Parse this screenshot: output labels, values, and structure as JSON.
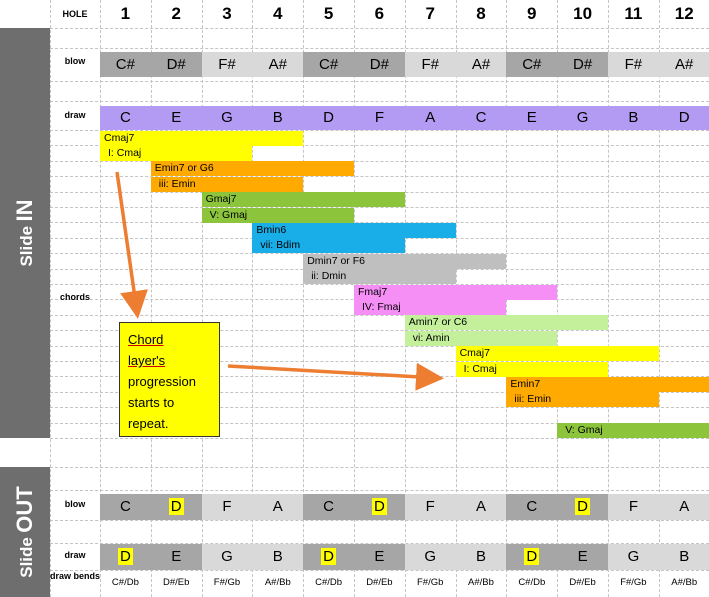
{
  "header": {
    "hole_label": "HOLE",
    "holes": [
      "1",
      "2",
      "3",
      "4",
      "5",
      "6",
      "7",
      "8",
      "9",
      "10",
      "11",
      "12"
    ]
  },
  "side_in": {
    "label_small": "Slide",
    "label_big": "IN"
  },
  "side_out": {
    "label_small": "Slide",
    "label_big": "OUT"
  },
  "rows": {
    "blow": "blow",
    "draw": "draw",
    "chords": "chords",
    "out_blow": "blow",
    "out_draw": "draw",
    "draw_bends": "draw bends"
  },
  "in_blow": [
    "C#",
    "D#",
    "F#",
    "A#",
    "C#",
    "D#",
    "F#",
    "A#",
    "C#",
    "D#",
    "F#",
    "A#"
  ],
  "in_draw": [
    "C",
    "E",
    "G",
    "B",
    "D",
    "F",
    "A",
    "C",
    "E",
    "G",
    "B",
    "D"
  ],
  "out_blow": [
    "C",
    "D",
    "F",
    "A",
    "C",
    "D",
    "F",
    "A",
    "C",
    "D",
    "F",
    "A"
  ],
  "out_blow_highlight": [
    false,
    true,
    false,
    false,
    false,
    true,
    false,
    false,
    false,
    true,
    false,
    false
  ],
  "out_draw": [
    "D",
    "E",
    "G",
    "B",
    "D",
    "E",
    "G",
    "B",
    "D",
    "E",
    "G",
    "B"
  ],
  "out_draw_highlight": [
    true,
    false,
    false,
    false,
    true,
    false,
    false,
    false,
    true,
    false,
    false,
    false
  ],
  "draw_bends": [
    "C#/Db",
    "D#/Eb",
    "F#/Gb",
    "A#/Bb",
    "C#/Db",
    "D#/Eb",
    "F#/Gb",
    "A#/Bb",
    "C#/Db",
    "D#/Eb",
    "F#/Gb",
    "A#/Bb"
  ],
  "chords": [
    {
      "name": "Cmaj7",
      "roman": "I:  Cmaj",
      "color": "#ffff00"
    },
    {
      "name": "Emin7 or G6",
      "roman": "iii:  Emin",
      "color": "#ffaa00"
    },
    {
      "name": "Gmaj7",
      "roman": "V:  Gmaj",
      "color": "#8cc43c"
    },
    {
      "name": "Bmin6",
      "roman": "vii:  Bdim",
      "color": "#1aaee8"
    },
    {
      "name": "Dmin7 or F6",
      "roman": "ii:  Dmin",
      "color": "#bfbfbf"
    },
    {
      "name": "Fmaj7",
      "roman": "IV:  Fmaj",
      "color": "#f58ef5"
    },
    {
      "name": "Amin7 or C6",
      "roman": "vi:  Amin",
      "color": "#c4f09c"
    },
    {
      "name": "Cmaj7",
      "roman": "I:  Cmaj",
      "color": "#ffff00"
    },
    {
      "name": "Emin7",
      "roman": "iii:  Emin",
      "color": "#ffaa00"
    },
    {
      "name": "",
      "roman": "V:  Gmaj",
      "color": "#8cc43c"
    }
  ],
  "note": {
    "line1": "Chord",
    "line2": "layer's",
    "line3": "progression",
    "line4": "starts to",
    "line5": "repeat."
  },
  "colors": {
    "side_bg": "#6e6e6e",
    "blow_dark": "#a6a6a6",
    "blow_light": "#d9d9d9",
    "draw_bg": "#b39af2",
    "arrow": "#ed7d31"
  }
}
